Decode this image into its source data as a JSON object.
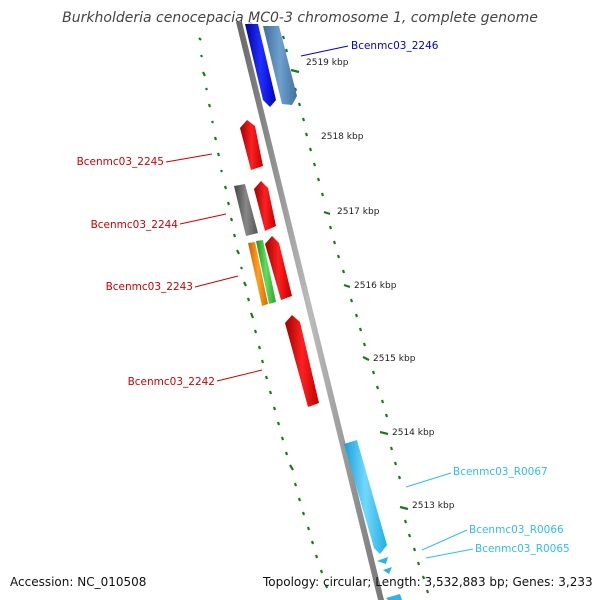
{
  "title": "Burkholderia cenocepacia MC0-3 chromosome 1, complete genome",
  "accession": "Accession: NC_010508",
  "topology": "Topology: circular; Length: 3,532,883 bp; Genes: 3,233",
  "colors": {
    "backbone": "#808080",
    "gc_track": "#1a7a1a",
    "label_red": "#cc0000",
    "label_blue": "#0000cc",
    "label_cyan": "#33bbee"
  },
  "ticks": [
    "2519 kbp",
    "2518 kbp",
    "2517 kbp",
    "2516 kbp",
    "2515 kbp",
    "2514 kbp",
    "2513 kbp"
  ],
  "gene_labels": [
    {
      "text": "Bcenmc03_2246",
      "color": "#0000cc"
    },
    {
      "text": "Bcenmc03_2245",
      "color": "#cc0000"
    },
    {
      "text": "Bcenmc03_2244",
      "color": "#cc0000"
    },
    {
      "text": "Bcenmc03_2243",
      "color": "#cc0000"
    },
    {
      "text": "Bcenmc03_2242",
      "color": "#cc0000"
    },
    {
      "text": "Bcenmc03_R0067",
      "color": "#33bbee"
    },
    {
      "text": "Bcenmc03_R0066",
      "color": "#33bbee"
    },
    {
      "text": "Bcenmc03_R0065",
      "color": "#33bbee"
    }
  ]
}
